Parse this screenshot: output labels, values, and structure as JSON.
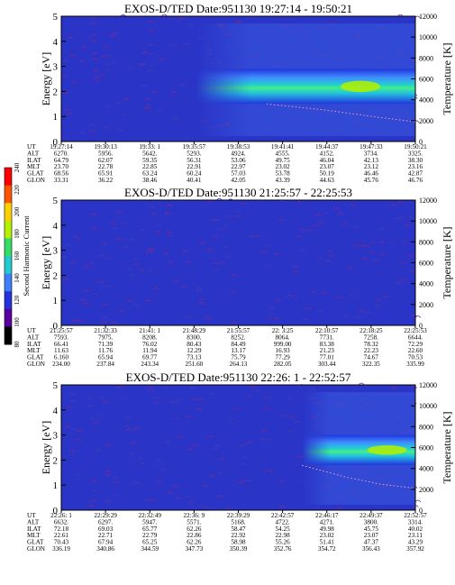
{
  "chart_data": [
    {
      "type": "heatmap",
      "title": "EXOS-D/TED   Date:951130   19:27:14 - 19:50:21",
      "ylabel": "Energy [eV]",
      "ylabel2": "Temperature [K]",
      "ylim": [
        0,
        5
      ],
      "y2lim": [
        0,
        12000
      ],
      "yticks": [
        "0",
        "1",
        "2",
        "3",
        "4",
        "5"
      ],
      "y2ticks": [
        "0",
        "2000",
        "4000",
        "6000",
        "8000",
        "10000",
        "12000"
      ],
      "row_labels": [
        "UT",
        "ALT",
        "ILAT",
        "MLT",
        "GLAT",
        "GLON"
      ],
      "columns": [
        [
          "19:27:14",
          "6270.",
          "64.79",
          "23.70",
          "68.56",
          "33.31"
        ],
        [
          "19:30:13",
          "5956.",
          "62.07",
          "22.78",
          "65.91",
          "36.22"
        ],
        [
          "19:33: 1",
          "5642.",
          "59.35",
          "22.85",
          "63.24",
          "38.46"
        ],
        [
          "19:35:57",
          "5293.",
          "56.31",
          "22.91",
          "60.24",
          "40.41"
        ],
        [
          "19:38:53",
          "4924.",
          "53.06",
          "22.97",
          "57.03",
          "42.05"
        ],
        [
          "19:41:41",
          "4555.",
          "49.75",
          "23.02",
          "53.78",
          "43.39"
        ],
        [
          "19:44:37",
          "4152.",
          "46.04",
          "23.07",
          "50.19",
          "44.63"
        ],
        [
          "19:47:33",
          "3734.",
          "42.13",
          "23.12",
          "46.46",
          "45.76"
        ],
        [
          "19:50:21",
          "3325.",
          "38.30",
          "23.16",
          "42.87",
          "46.76"
        ]
      ],
      "activity": {
        "band_center_energy": 2.2,
        "band_half_width": 0.7,
        "starts_at_fraction": 0.38
      },
      "temperature_curve": [
        [
          0.58,
          3600
        ],
        [
          0.75,
          3000
        ],
        [
          0.9,
          2300
        ],
        [
          1.0,
          1900
        ]
      ]
    },
    {
      "type": "heatmap",
      "title": "EXOS-D/TED   Date:951130   21:25:57 - 22:25:53",
      "ylabel": "Energy [eV]",
      "ylabel2": "Temperature [K]",
      "ylim": [
        0,
        5
      ],
      "y2lim": [
        0,
        12000
      ],
      "yticks": [
        "0",
        "1",
        "2",
        "3",
        "4",
        "5"
      ],
      "y2ticks": [
        "0",
        "2000",
        "4000",
        "6000",
        "8000",
        "10000",
        "12000"
      ],
      "row_labels": [
        "UT",
        "ALT",
        "ILAT",
        "MLT",
        "GLAT",
        "GLON"
      ],
      "columns": [
        [
          "21:25:57",
          "7593.",
          "66.41",
          "11.63",
          "6.160",
          "234.00"
        ],
        [
          "21:32:33",
          "7975.",
          "71.39",
          "11.76",
          "65.94",
          "237.84"
        ],
        [
          "21:41: 1",
          "8208.",
          "76.02",
          "11.94",
          "69.77",
          "243.34"
        ],
        [
          "21:48:29",
          "8300.",
          "80.43",
          "12.29",
          "73.13",
          "251.60"
        ],
        [
          "21:55:57",
          "8252.",
          "84.49",
          "13.17",
          "75.79",
          "264.13"
        ],
        [
          "22: 3:25",
          "8064.",
          "999.00",
          "16.93",
          "77.29",
          "282.05"
        ],
        [
          "22:10:57",
          "7731.",
          "83.38",
          "21.23",
          "77.01",
          "303.44"
        ],
        [
          "22:18:25",
          "7258.",
          "78.32",
          "22.23",
          "74.67",
          "322.35"
        ],
        [
          "22:25:53",
          "6644.",
          "72.29",
          "22.60",
          "70.53",
          "335.99"
        ]
      ],
      "activity": null,
      "temperature_curve": []
    },
    {
      "type": "heatmap",
      "title": "EXOS-D/TED   Date:951130   22:26: 1 - 22:52:57",
      "ylabel": "Energy [eV]",
      "ylabel2": "Temperature [K]",
      "ylim": [
        0,
        5
      ],
      "y2lim": [
        0,
        12000
      ],
      "yticks": [
        "0",
        "1",
        "2",
        "3",
        "4",
        "5"
      ],
      "y2ticks": [
        "0",
        "2000",
        "4000",
        "6000",
        "8000",
        "10000",
        "12000"
      ],
      "row_labels": [
        "UT",
        "ALT",
        "ILAT",
        "MLT",
        "GLAT",
        "GLON"
      ],
      "columns": [
        [
          "22:26: 1",
          "6632.",
          "72.18",
          "22.61",
          "70.43",
          "336.19"
        ],
        [
          "22:29:29",
          "6297.",
          "69.03",
          "22.71",
          "67.94",
          "340.86"
        ],
        [
          "22:32:49",
          "5947.",
          "65.77",
          "22.79",
          "65.25",
          "344.59"
        ],
        [
          "22:36: 9",
          "5571.",
          "62.26",
          "22.86",
          "62.26",
          "347.73"
        ],
        [
          "22:39:29",
          "5168.",
          "58.47",
          "22.92",
          "58.98",
          "350.39"
        ],
        [
          "22:42:57",
          "4722.",
          "54.25",
          "22.98",
          "55.26",
          "352.76"
        ],
        [
          "22:46:17",
          "4271.",
          "49.98",
          "23.02",
          "51.41",
          "354.72"
        ],
        [
          "22:49:37",
          "3800.",
          "45.75",
          "23.07",
          "47.37",
          "356.43"
        ],
        [
          "22:52:57",
          "3314.",
          "40.02",
          "23.11",
          "43.29",
          "357.92"
        ]
      ],
      "activity": {
        "band_center_energy": 2.4,
        "band_half_width": 0.6,
        "starts_at_fraction": 0.68
      },
      "temperature_curve": [
        [
          0.68,
          4300
        ],
        [
          0.8,
          3200
        ],
        [
          0.9,
          2500
        ],
        [
          1.0,
          2100
        ]
      ]
    }
  ],
  "colorbar": {
    "label": "Second Harmonic Current",
    "ticks": [
      "80",
      "100",
      "120",
      "140",
      "160",
      "180",
      "200",
      "220",
      "240"
    ],
    "colors": [
      "#000000",
      "#5a00a0",
      "#2233dd",
      "#3f7fff",
      "#22cccc",
      "#33dd66",
      "#b4f000",
      "#ffd000",
      "#ff5500",
      "#ff0000"
    ]
  }
}
